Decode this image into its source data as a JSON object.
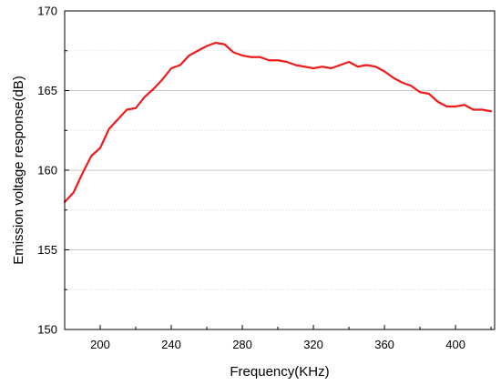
{
  "chart_data": {
    "type": "line",
    "title": "",
    "xlabel": "Frequency(KHz)",
    "ylabel": "Emission voltage response(dB)",
    "xlim": [
      180,
      422
    ],
    "ylim": [
      150,
      170
    ],
    "x_ticks": [
      200,
      240,
      280,
      320,
      360,
      400
    ],
    "y_ticks": [
      150,
      155,
      160,
      165,
      170
    ],
    "grid": "horizontal major and minor lines",
    "legend": "none",
    "series": [
      {
        "color": "#ee1c1c",
        "x": [
          180,
          185,
          190,
          195,
          200,
          205,
          210,
          215,
          220,
          225,
          230,
          235,
          240,
          245,
          250,
          255,
          260,
          265,
          270,
          275,
          280,
          285,
          290,
          295,
          300,
          305,
          310,
          315,
          320,
          325,
          330,
          335,
          340,
          345,
          350,
          355,
          360,
          365,
          370,
          375,
          380,
          385,
          390,
          395,
          400,
          405,
          410,
          415,
          420
        ],
        "y": [
          158,
          158.6,
          159.8,
          160.9,
          161.4,
          162.6,
          163.2,
          163.8,
          163.9,
          164.6,
          165.1,
          165.7,
          166.4,
          166.6,
          167.2,
          167.5,
          167.8,
          168,
          167.9,
          167.4,
          167.2,
          167.1,
          167.1,
          166.9,
          166.9,
          166.8,
          166.6,
          166.5,
          166.4,
          166.5,
          166.4,
          166.6,
          166.8,
          166.5,
          166.6,
          166.5,
          166.2,
          165.8,
          165.5,
          165.3,
          164.9,
          164.8,
          164.3,
          164.0,
          164.0,
          164.1,
          163.8,
          163.8,
          163.7
        ]
      }
    ]
  }
}
